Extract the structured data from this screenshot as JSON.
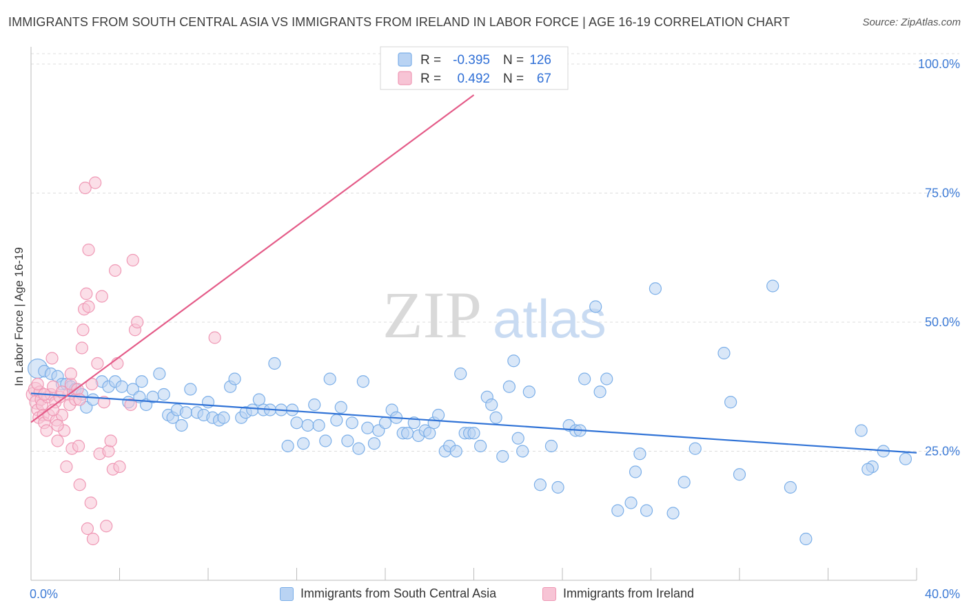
{
  "title": "IMMIGRANTS FROM SOUTH CENTRAL ASIA VS IMMIGRANTS FROM IRELAND IN LABOR FORCE | AGE 16-19 CORRELATION CHART",
  "source": "Source: ZipAtlas.com",
  "watermark": {
    "zip": "ZIP",
    "atlas": "atlas"
  },
  "chart_data": {
    "type": "scatter",
    "ylabel": "In Labor Force | Age 16-19",
    "xlim": [
      0,
      40
    ],
    "ylim": [
      0,
      102
    ],
    "x_tick_labels": [
      "0.0%",
      "40.0%"
    ],
    "y_ticks": [
      25,
      50,
      75,
      100
    ],
    "y_tick_labels": [
      "25.0%",
      "50.0%",
      "75.0%",
      "100.0%"
    ],
    "grid": true,
    "legend_position": "top-center",
    "stats_legend": [
      {
        "r_label": "R =",
        "r_value": "-0.395",
        "n_label": "N =",
        "n_value": "126"
      },
      {
        "r_label": "R =",
        "r_value": "0.492",
        "n_label": "N =",
        "n_value": "67"
      }
    ],
    "series": [
      {
        "name": "Immigrants from South Central Asia",
        "color": "#7aaee8",
        "fill": "#b9d3f3",
        "line_color": "#2f72d6",
        "trend": {
          "x": [
            0,
            40
          ],
          "y": [
            36.2,
            24.7
          ]
        },
        "points": [
          [
            0.3,
            41
          ],
          [
            0.6,
            40.5
          ],
          [
            0.9,
            40
          ],
          [
            1.2,
            39.5
          ],
          [
            1.4,
            38
          ],
          [
            1.6,
            38
          ],
          [
            1.8,
            37.5
          ],
          [
            2.0,
            37
          ],
          [
            2.3,
            36
          ],
          [
            2.5,
            33.5
          ],
          [
            2.8,
            35
          ],
          [
            3.2,
            38.5
          ],
          [
            3.5,
            37.5
          ],
          [
            3.8,
            38.5
          ],
          [
            4.1,
            37.5
          ],
          [
            4.4,
            34.5
          ],
          [
            4.6,
            37
          ],
          [
            4.9,
            35.5
          ],
          [
            5.0,
            38.5
          ],
          [
            5.2,
            34
          ],
          [
            5.5,
            35.5
          ],
          [
            5.8,
            40
          ],
          [
            6.0,
            36
          ],
          [
            6.2,
            32
          ],
          [
            6.4,
            31.5
          ],
          [
            6.6,
            33
          ],
          [
            6.8,
            30
          ],
          [
            7.0,
            32.5
          ],
          [
            7.2,
            37
          ],
          [
            7.5,
            32.5
          ],
          [
            7.8,
            32
          ],
          [
            8.0,
            34.5
          ],
          [
            8.2,
            31.5
          ],
          [
            8.5,
            31
          ],
          [
            8.7,
            31.5
          ],
          [
            9.0,
            37.5
          ],
          [
            9.2,
            39
          ],
          [
            9.5,
            31.5
          ],
          [
            9.7,
            32.5
          ],
          [
            10.0,
            33
          ],
          [
            10.3,
            35
          ],
          [
            10.5,
            33
          ],
          [
            10.8,
            33
          ],
          [
            11.0,
            42
          ],
          [
            11.3,
            33
          ],
          [
            11.6,
            26
          ],
          [
            11.8,
            33
          ],
          [
            12.0,
            30.5
          ],
          [
            12.3,
            26.5
          ],
          [
            12.5,
            30
          ],
          [
            12.8,
            34
          ],
          [
            13.0,
            30
          ],
          [
            13.3,
            27
          ],
          [
            13.5,
            39
          ],
          [
            13.8,
            31
          ],
          [
            14.0,
            33.5
          ],
          [
            14.3,
            27
          ],
          [
            14.5,
            30.5
          ],
          [
            14.8,
            25.5
          ],
          [
            15.0,
            38.5
          ],
          [
            15.2,
            29.5
          ],
          [
            15.5,
            26.5
          ],
          [
            15.7,
            29
          ],
          [
            16.0,
            30.5
          ],
          [
            16.3,
            33
          ],
          [
            16.5,
            31.5
          ],
          [
            16.8,
            28.5
          ],
          [
            17.0,
            28.5
          ],
          [
            17.3,
            30.5
          ],
          [
            17.5,
            28
          ],
          [
            17.8,
            29
          ],
          [
            18.0,
            28.5
          ],
          [
            18.2,
            30.5
          ],
          [
            18.4,
            32
          ],
          [
            18.7,
            25
          ],
          [
            18.9,
            26
          ],
          [
            19.2,
            25
          ],
          [
            19.4,
            40
          ],
          [
            19.6,
            28.5
          ],
          [
            19.8,
            28.5
          ],
          [
            20.0,
            28.5
          ],
          [
            20.3,
            26
          ],
          [
            20.6,
            35.5
          ],
          [
            20.8,
            34
          ],
          [
            21.0,
            31.5
          ],
          [
            21.3,
            24
          ],
          [
            21.6,
            37.5
          ],
          [
            21.8,
            42.5
          ],
          [
            22.0,
            27.5
          ],
          [
            22.2,
            25
          ],
          [
            22.5,
            36.5
          ],
          [
            23.0,
            18.5
          ],
          [
            23.5,
            26
          ],
          [
            23.8,
            18
          ],
          [
            24.3,
            30
          ],
          [
            24.6,
            29
          ],
          [
            24.8,
            29
          ],
          [
            25.0,
            39
          ],
          [
            25.5,
            53
          ],
          [
            25.7,
            36.5
          ],
          [
            26.0,
            39
          ],
          [
            26.5,
            13.5
          ],
          [
            27.1,
            15
          ],
          [
            27.3,
            21
          ],
          [
            27.5,
            24.5
          ],
          [
            27.8,
            13.5
          ],
          [
            28.2,
            56.5
          ],
          [
            29.0,
            13
          ],
          [
            29.5,
            19
          ],
          [
            30.0,
            25.5
          ],
          [
            31.3,
            44
          ],
          [
            31.6,
            34.5
          ],
          [
            32.0,
            20.5
          ],
          [
            33.5,
            57
          ],
          [
            34.3,
            18
          ],
          [
            35.0,
            8
          ],
          [
            37.5,
            29
          ],
          [
            38.0,
            22
          ],
          [
            37.8,
            21.5
          ],
          [
            38.5,
            25
          ],
          [
            39.5,
            23.5
          ]
        ]
      },
      {
        "name": "Immigrants from Ireland",
        "color": "#ef97b4",
        "fill": "#f7c4d5",
        "line_color": "#e45b88",
        "trend": {
          "x": [
            0,
            20.0
          ],
          "y": [
            30.6,
            94
          ]
        },
        "points": [
          [
            0.1,
            36
          ],
          [
            0.2,
            37
          ],
          [
            0.25,
            34.5
          ],
          [
            0.3,
            33
          ],
          [
            0.35,
            31.5
          ],
          [
            0.4,
            36.5
          ],
          [
            0.45,
            35
          ],
          [
            0.5,
            34
          ],
          [
            0.55,
            32
          ],
          [
            0.6,
            30.5
          ],
          [
            0.7,
            29
          ],
          [
            0.75,
            35.5
          ],
          [
            0.8,
            32
          ],
          [
            0.9,
            36
          ],
          [
            0.95,
            43
          ],
          [
            1.0,
            37.5
          ],
          [
            1.1,
            34.5
          ],
          [
            1.15,
            31
          ],
          [
            1.2,
            27
          ],
          [
            1.3,
            35.5
          ],
          [
            1.4,
            32
          ],
          [
            1.5,
            29
          ],
          [
            1.6,
            22
          ],
          [
            1.7,
            36
          ],
          [
            1.75,
            34
          ],
          [
            1.8,
            38
          ],
          [
            1.85,
            25.5
          ],
          [
            2.0,
            35
          ],
          [
            2.1,
            37
          ],
          [
            2.15,
            26
          ],
          [
            2.2,
            18.5
          ],
          [
            2.3,
            45
          ],
          [
            2.35,
            48.5
          ],
          [
            2.4,
            52.5
          ],
          [
            2.45,
            76
          ],
          [
            2.5,
            55.5
          ],
          [
            2.55,
            10
          ],
          [
            2.6,
            53
          ],
          [
            2.6,
            64
          ],
          [
            2.7,
            15
          ],
          [
            2.75,
            38
          ],
          [
            2.8,
            8
          ],
          [
            2.9,
            77
          ],
          [
            3.0,
            42
          ],
          [
            3.1,
            24.5
          ],
          [
            3.2,
            55
          ],
          [
            3.3,
            34.5
          ],
          [
            3.4,
            10.5
          ],
          [
            3.5,
            25
          ],
          [
            3.6,
            27
          ],
          [
            3.7,
            21.5
          ],
          [
            3.8,
            60
          ],
          [
            3.9,
            42
          ],
          [
            4.0,
            22
          ],
          [
            4.5,
            34
          ],
          [
            4.6,
            62
          ],
          [
            4.7,
            48.5
          ],
          [
            4.8,
            50
          ],
          [
            8.3,
            47
          ],
          [
            18.1,
            100
          ],
          [
            0.3,
            38
          ],
          [
            0.6,
            36
          ],
          [
            1.0,
            33
          ],
          [
            1.4,
            36.5
          ],
          [
            1.8,
            40
          ],
          [
            2.2,
            35
          ],
          [
            1.2,
            30
          ]
        ]
      }
    ]
  },
  "legend_bottom": [
    {
      "label": "Immigrants from South Central Asia",
      "fill": "#b9d3f3",
      "stroke": "#7aaee8"
    },
    {
      "label": "Immigrants from Ireland",
      "fill": "#f7c4d5",
      "stroke": "#ef97b4"
    }
  ]
}
